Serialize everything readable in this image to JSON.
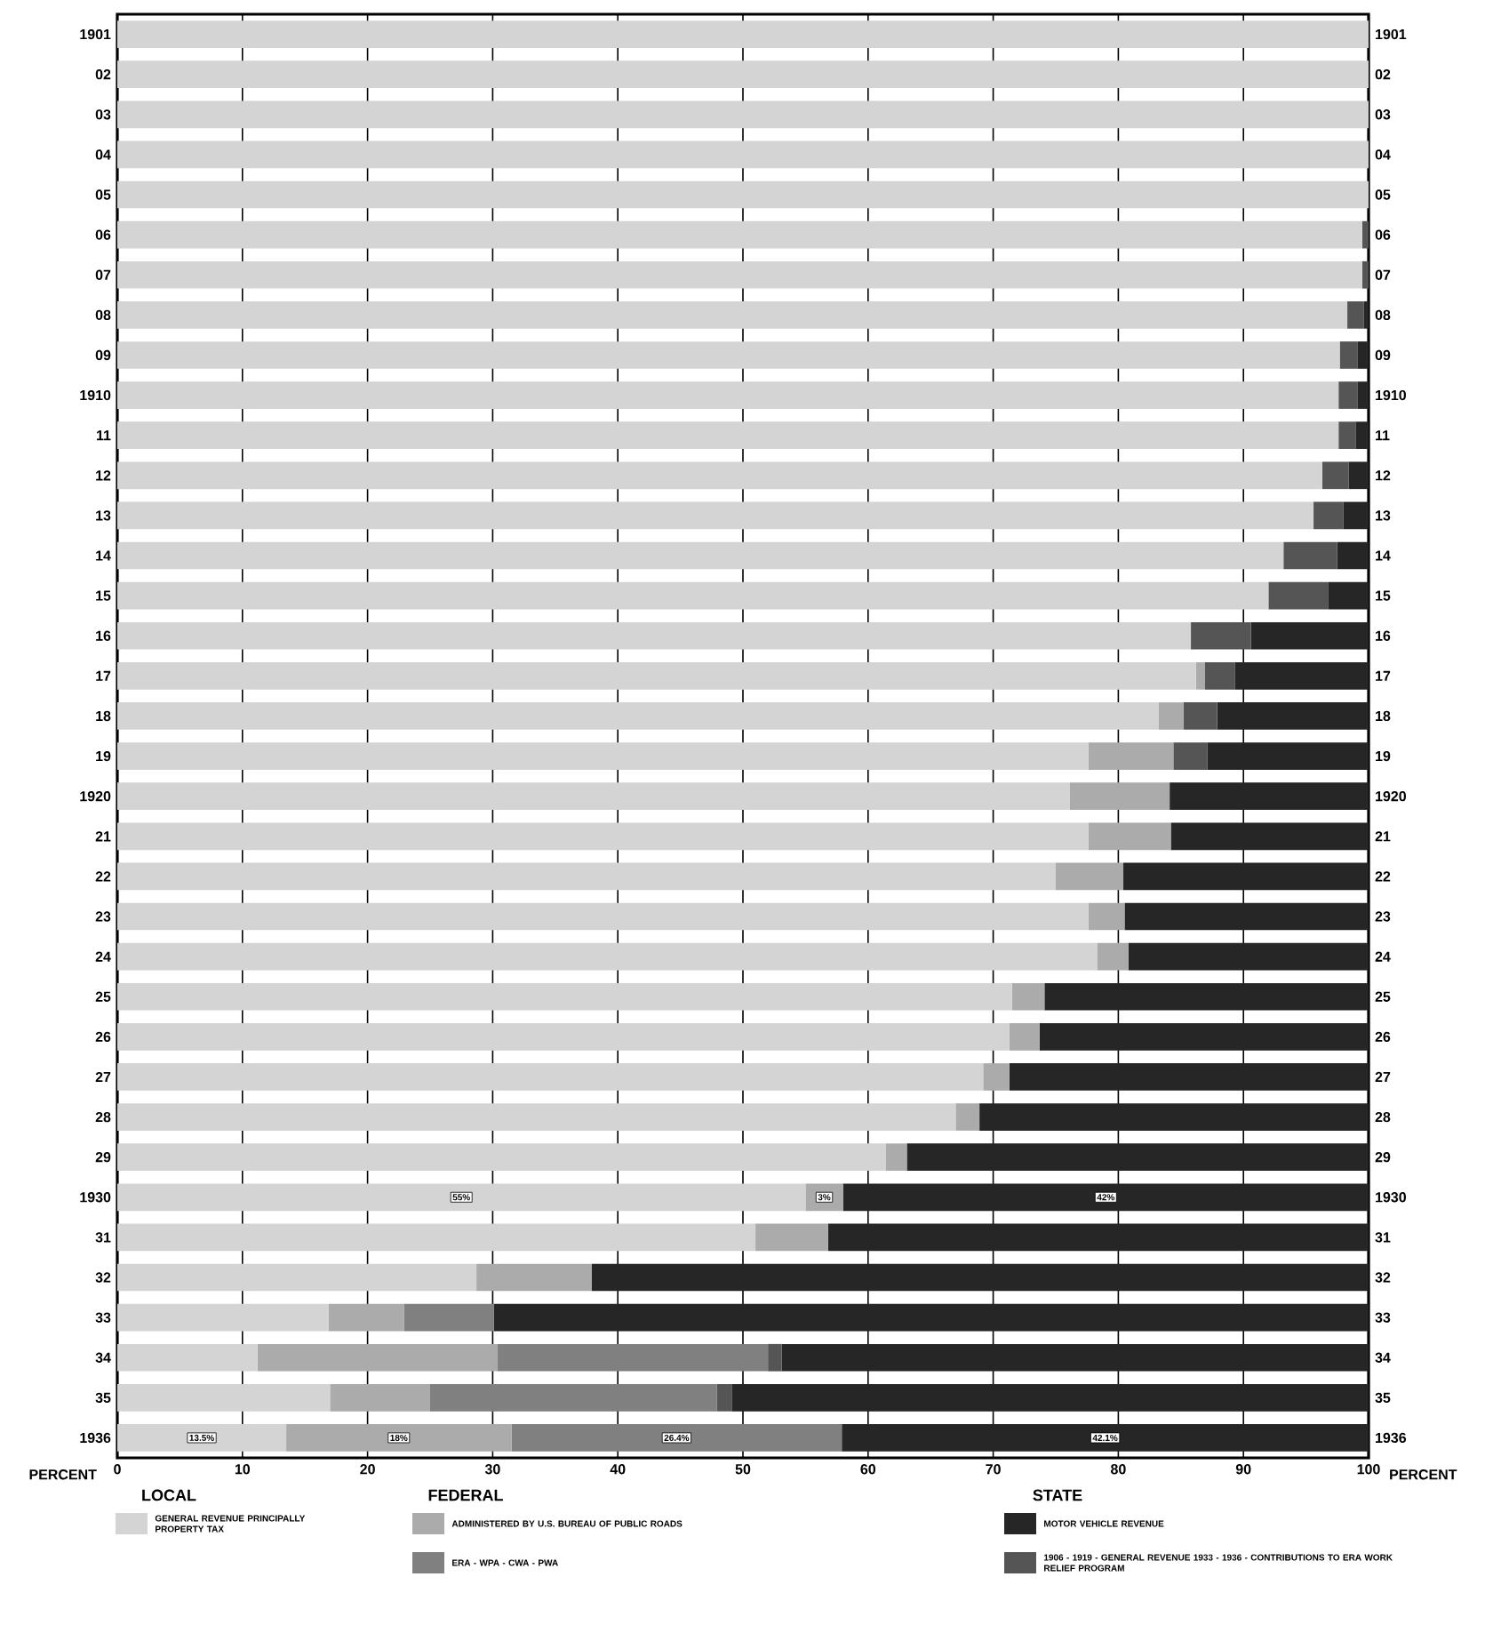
{
  "chart_data": {
    "type": "bar",
    "orientation": "horizontal",
    "stacked": true,
    "categories": [
      "1901",
      "02",
      "03",
      "04",
      "05",
      "06",
      "07",
      "08",
      "09",
      "1910",
      "11",
      "12",
      "13",
      "14",
      "15",
      "16",
      "17",
      "18",
      "19",
      "1920",
      "21",
      "22",
      "23",
      "24",
      "25",
      "26",
      "27",
      "28",
      "29",
      "1930",
      "31",
      "32",
      "33",
      "34",
      "35",
      "1936"
    ],
    "series": [
      {
        "name": "GENERAL REVENUE PRINCIPALLY PROPERTY TAX",
        "color": "#d4d4d4",
        "values": [
          100,
          100,
          100,
          100,
          100,
          99.5,
          99.5,
          98.3,
          97.7,
          97.6,
          97.6,
          96.3,
          95.6,
          93.2,
          92.0,
          85.8,
          86.2,
          83.2,
          77.6,
          76.1,
          77.6,
          75.0,
          77.6,
          78.3,
          71.5,
          71.3,
          69.2,
          67.0,
          61.4,
          55,
          51.0,
          28.7,
          16.9,
          11.2,
          17.0,
          13.5
        ],
        "value_labels": [
          null,
          null,
          null,
          null,
          null,
          null,
          null,
          null,
          null,
          null,
          null,
          null,
          null,
          null,
          null,
          null,
          null,
          null,
          null,
          null,
          null,
          null,
          null,
          null,
          null,
          null,
          null,
          null,
          null,
          "55%",
          null,
          null,
          null,
          null,
          null,
          "13.5%"
        ]
      },
      {
        "name": "ADMINISTERED BY U.S. BUREAU OF PUBLIC ROADS",
        "color": "#ababab",
        "values": [
          0,
          0,
          0,
          0,
          0,
          0,
          0,
          0,
          0,
          0,
          0,
          0,
          0,
          0,
          0,
          0,
          0.7,
          2.0,
          6.8,
          8.0,
          6.6,
          5.4,
          2.9,
          2.5,
          2.6,
          2.4,
          2.1,
          1.9,
          1.7,
          3,
          5.8,
          9.2,
          6.0,
          19.2,
          8.0,
          18
        ],
        "value_labels": [
          null,
          null,
          null,
          null,
          null,
          null,
          null,
          null,
          null,
          null,
          null,
          null,
          null,
          null,
          null,
          null,
          null,
          null,
          null,
          null,
          null,
          null,
          null,
          null,
          null,
          null,
          null,
          null,
          null,
          "3%",
          null,
          null,
          null,
          null,
          null,
          "18%"
        ]
      },
      {
        "name": "ERA - WPA - CWA - PWA",
        "color": "#808080",
        "values": [
          0,
          0,
          0,
          0,
          0,
          0,
          0,
          0,
          0,
          0,
          0,
          0,
          0,
          0,
          0,
          0,
          0,
          0,
          0,
          0,
          0,
          0,
          0,
          0,
          0,
          0,
          0,
          0,
          0,
          0,
          0,
          0,
          7.2,
          21.6,
          22.9,
          26.4
        ],
        "value_labels": [
          null,
          null,
          null,
          null,
          null,
          null,
          null,
          null,
          null,
          null,
          null,
          null,
          null,
          null,
          null,
          null,
          null,
          null,
          null,
          null,
          null,
          null,
          null,
          null,
          null,
          null,
          null,
          null,
          null,
          null,
          null,
          null,
          null,
          null,
          null,
          "26.4%"
        ]
      },
      {
        "name": "1906 - 1919 - GENERAL REVENUE 1933 - 1936 - CONTRIBUTIONS TO ERA WORK RELIEF PROGRAM",
        "color": "#555555",
        "values": [
          0,
          0,
          0,
          0,
          0,
          0.5,
          0.5,
          1.3,
          1.4,
          1.5,
          1.4,
          2.1,
          2.4,
          4.3,
          4.8,
          4.8,
          2.4,
          2.7,
          2.7,
          0,
          0,
          0,
          0,
          0,
          0,
          0,
          0,
          0,
          0,
          0,
          0,
          0,
          0,
          1.1,
          1.2,
          0
        ]
      },
      {
        "name": "MOTOR VEHICLE REVENUE",
        "color": "#262626",
        "values": [
          0,
          0,
          0,
          0,
          0,
          0,
          0,
          0.4,
          0.9,
          0.9,
          1.0,
          1.6,
          2.0,
          2.5,
          3.2,
          9.4,
          10.7,
          12.1,
          12.9,
          15.9,
          15.8,
          19.6,
          19.5,
          19.2,
          25.9,
          26.3,
          28.7,
          31.1,
          36.9,
          42,
          43.2,
          62.1,
          69.9,
          46.9,
          50.9,
          42.1
        ],
        "value_labels": [
          null,
          null,
          null,
          null,
          null,
          null,
          null,
          null,
          null,
          null,
          null,
          null,
          null,
          null,
          null,
          null,
          null,
          null,
          null,
          null,
          null,
          null,
          null,
          null,
          null,
          null,
          null,
          null,
          null,
          "42%",
          null,
          null,
          null,
          null,
          null,
          "42.1%"
        ]
      }
    ],
    "xlabel": "PERCENT",
    "xlim": [
      0,
      100
    ],
    "xticks": [
      0,
      10,
      20,
      30,
      40,
      50,
      60,
      70,
      80,
      90,
      100
    ],
    "grid": "x",
    "legend": "bottom",
    "annotations": [
      "LOCAL",
      "FEDERAL",
      "STATE"
    ]
  }
}
